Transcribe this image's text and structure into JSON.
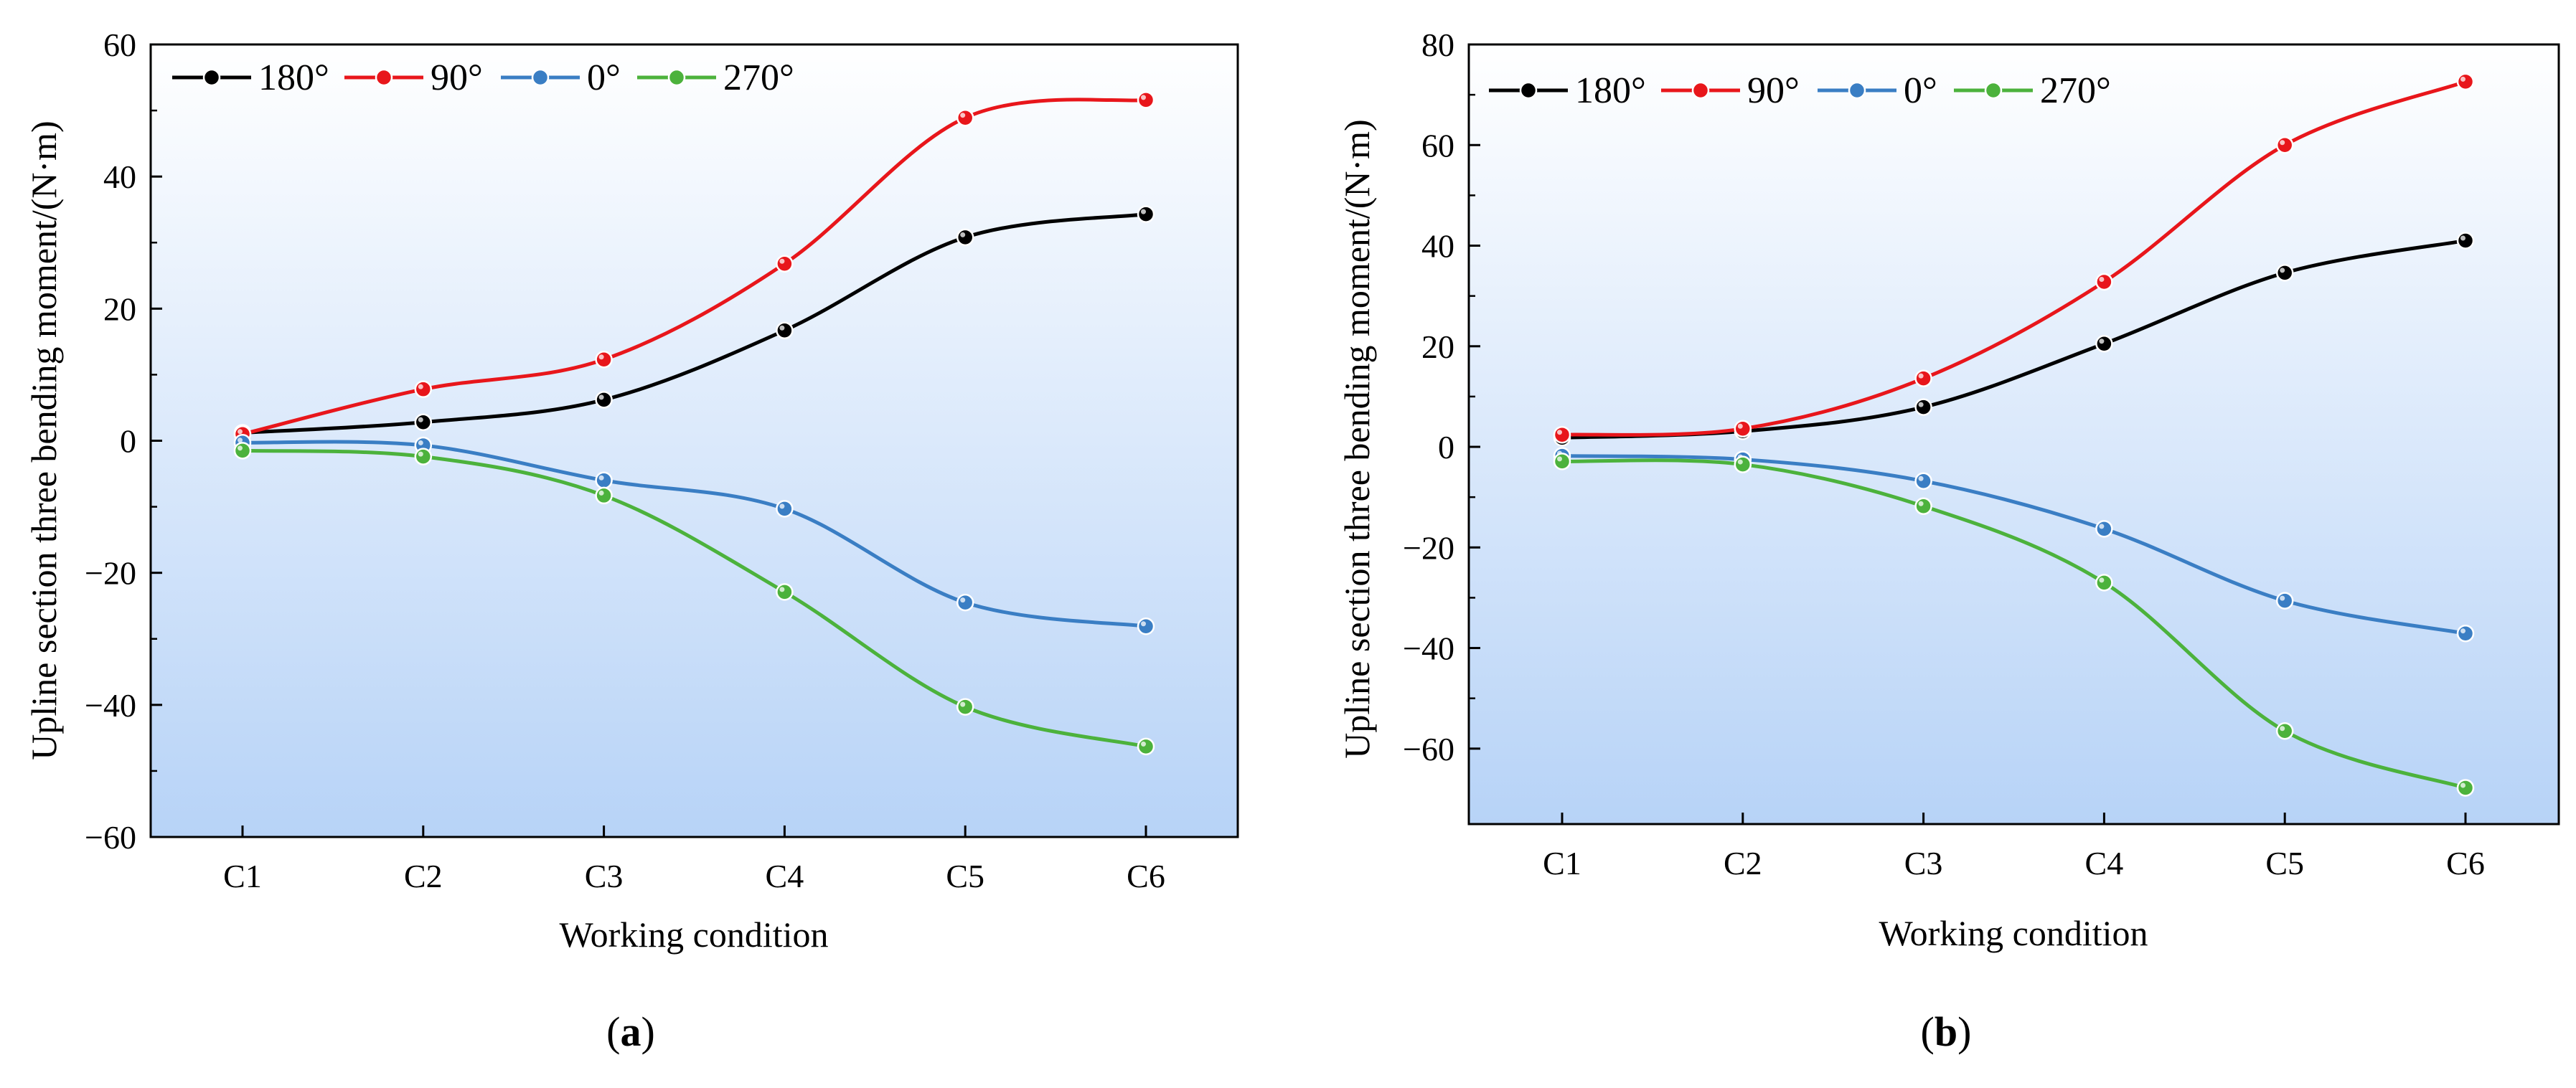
{
  "chart_data": [
    {
      "id": "a",
      "panel_label": "a",
      "type": "line",
      "smooth": true,
      "xlabel": "Working condition",
      "ylabel": "Upline section three bending moment/(N·m)",
      "categories": [
        "C1",
        "C2",
        "C3",
        "C4",
        "C5",
        "C6"
      ],
      "ylim": [
        -60,
        60
      ],
      "yticks": [
        -60,
        -40,
        -20,
        0,
        20,
        40,
        60
      ],
      "yticks_labels": [
        "−60",
        "−40",
        "−20",
        "0",
        "20",
        "40",
        "60"
      ],
      "background": "vertical gradient white (top) to light blue (bottom)",
      "legend_position": "top-left",
      "series": [
        {
          "name": "180°",
          "color": "#000000",
          "values": [
            1.2,
            2.8,
            6.2,
            16.7,
            30.8,
            34.3
          ]
        },
        {
          "name": "90°",
          "color": "#e8161b",
          "values": [
            1.0,
            7.8,
            12.3,
            26.8,
            48.9,
            51.6
          ]
        },
        {
          "name": "0°",
          "color": "#3a7ec4",
          "values": [
            -0.3,
            -0.7,
            -6.0,
            -10.3,
            -24.5,
            -28.1
          ]
        },
        {
          "name": "270°",
          "color": "#4cb23c",
          "values": [
            -1.5,
            -2.4,
            -8.3,
            -22.9,
            -40.3,
            -46.3
          ]
        }
      ]
    },
    {
      "id": "b",
      "panel_label": "b",
      "type": "line",
      "smooth": true,
      "xlabel": "Working condition",
      "ylabel": "Upline section three bending moment/(N·m)",
      "categories": [
        "C1",
        "C2",
        "C3",
        "C4",
        "C5",
        "C6"
      ],
      "ylim": [
        -75,
        80
      ],
      "yticks": [
        -60,
        -40,
        -20,
        0,
        20,
        40,
        60,
        80
      ],
      "yticks_labels": [
        "−60",
        "−40",
        "−20",
        "0",
        "20",
        "40",
        "60",
        "80"
      ],
      "background": "vertical gradient white (top) to light blue (bottom)",
      "legend_position": "top-left",
      "series": [
        {
          "name": "180°",
          "color": "#000000",
          "values": [
            1.8,
            3.1,
            7.9,
            20.5,
            34.6,
            41.0
          ]
        },
        {
          "name": "90°",
          "color": "#e8161b",
          "values": [
            2.4,
            3.6,
            13.6,
            32.8,
            60.0,
            72.6
          ]
        },
        {
          "name": "0°",
          "color": "#3a7ec4",
          "values": [
            -1.8,
            -2.5,
            -6.8,
            -16.3,
            -30.6,
            -37.1
          ]
        },
        {
          "name": "270°",
          "color": "#4cb23c",
          "values": [
            -2.9,
            -3.5,
            -11.8,
            -27.0,
            -56.5,
            -67.8
          ]
        }
      ]
    }
  ]
}
